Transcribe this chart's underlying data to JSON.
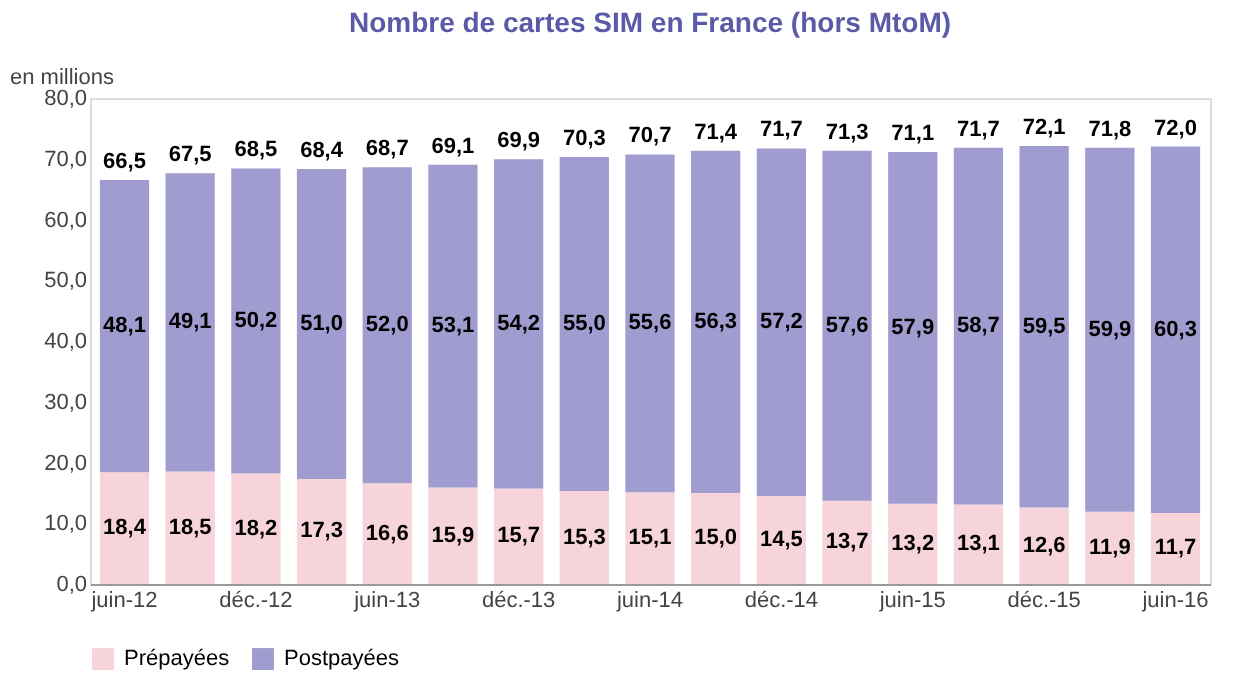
{
  "chart_data": {
    "type": "bar",
    "stacked": true,
    "title": "Nombre de cartes SIM en France (hors MtoM)",
    "ylabel": "en millions",
    "categories": [
      "juin-12",
      null,
      "déc.-12",
      null,
      "juin-13",
      null,
      "déc.-13",
      null,
      "juin-14",
      null,
      "déc.-14",
      null,
      "juin-15",
      null,
      "déc.-15",
      null,
      "juin-16"
    ],
    "series": [
      {
        "name": "Prépayées",
        "color": "#f7d3da",
        "values": [
          18.4,
          18.5,
          18.2,
          17.3,
          16.6,
          15.9,
          15.7,
          15.3,
          15.1,
          15.0,
          14.5,
          13.7,
          13.2,
          13.1,
          12.6,
          11.9,
          11.7
        ],
        "value_labels": [
          "18,4",
          "18,5",
          "18,2",
          "17,3",
          "16,6",
          "15,9",
          "15,7",
          "15,3",
          "15,1",
          "15,0",
          "14,5",
          "13,7",
          "13,2",
          "13,1",
          "12,6",
          "11,9",
          "11,7"
        ]
      },
      {
        "name": "Postpayées",
        "color": "#a09ccf",
        "values": [
          48.1,
          49.1,
          50.2,
          51.0,
          52.0,
          53.1,
          54.2,
          55.0,
          55.6,
          56.3,
          57.2,
          57.6,
          57.9,
          58.7,
          59.5,
          59.9,
          60.3
        ],
        "value_labels": [
          "48,1",
          "49,1",
          "50,2",
          "51,0",
          "52,0",
          "53,1",
          "54,2",
          "55,0",
          "55,6",
          "56,3",
          "57,2",
          "57,6",
          "57,9",
          "58,7",
          "59,5",
          "59,9",
          "60,3"
        ]
      }
    ],
    "totals": [
      "66,5",
      "67,5",
      "68,5",
      "68,4",
      "68,7",
      "69,1",
      "69,9",
      "70,3",
      "70,7",
      "71,4",
      "71,7",
      "71,3",
      "71,1",
      "71,7",
      "72,1",
      "71,8",
      "72,0"
    ],
    "ylim": [
      0,
      80
    ],
    "yticks": [
      {
        "value": 0,
        "label": "0,0"
      },
      {
        "value": 10,
        "label": "10,0"
      },
      {
        "value": 20,
        "label": "20,0"
      },
      {
        "value": 30,
        "label": "30,0"
      },
      {
        "value": 40,
        "label": "40,0"
      },
      {
        "value": 50,
        "label": "50,0"
      },
      {
        "value": 60,
        "label": "60,0"
      },
      {
        "value": 70,
        "label": "70,0"
      },
      {
        "value": 80,
        "label": "80,0"
      }
    ],
    "grid": false,
    "legend": "bottom"
  }
}
